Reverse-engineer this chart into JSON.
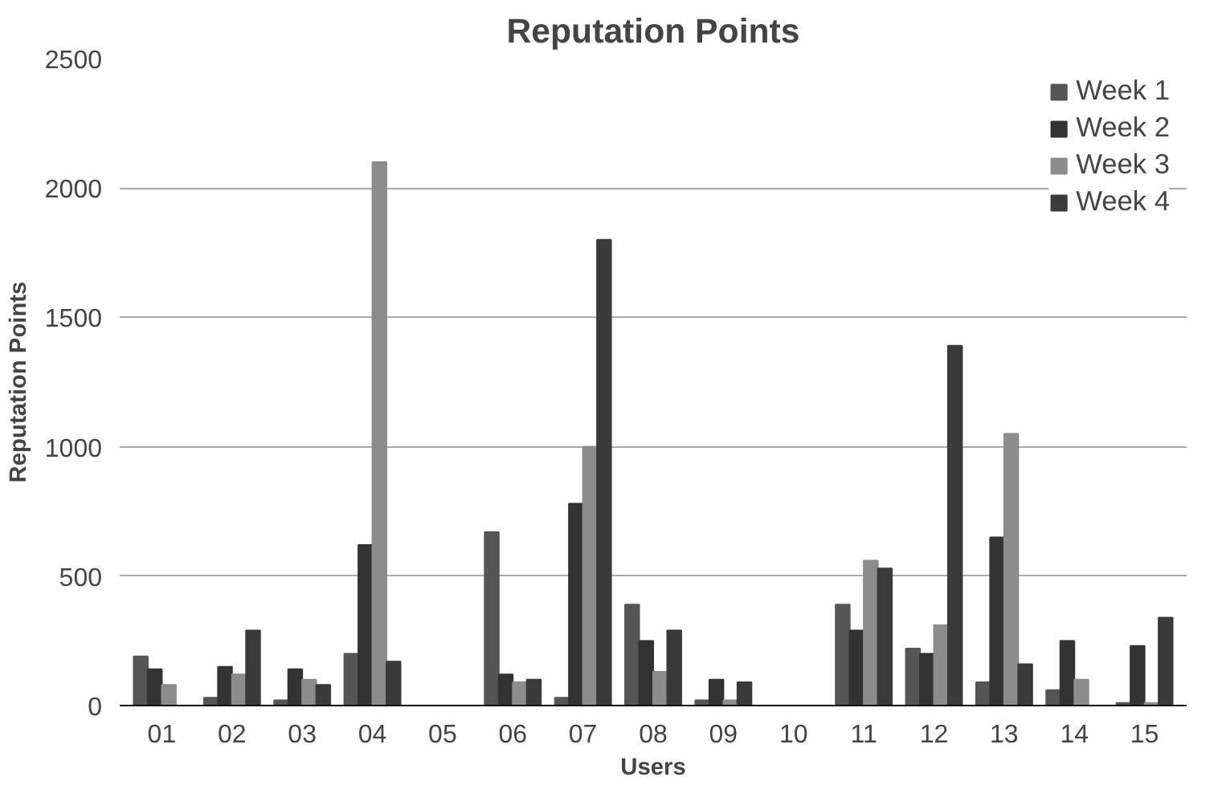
{
  "chart_data": {
    "type": "bar",
    "title": "Reputation Points",
    "xlabel": "Users",
    "ylabel": "Reputation Points",
    "categories": [
      "01",
      "02",
      "03",
      "04",
      "05",
      "06",
      "07",
      "08",
      "09",
      "10",
      "11",
      "12",
      "13",
      "14",
      "15"
    ],
    "series": [
      {
        "name": "Week 1",
        "color": "#555555",
        "values": [
          190,
          30,
          20,
          200,
          0,
          670,
          30,
          390,
          20,
          0,
          390,
          220,
          90,
          60,
          10
        ]
      },
      {
        "name": "Week 2",
        "color": "#333333",
        "values": [
          140,
          150,
          140,
          620,
          0,
          120,
          780,
          250,
          100,
          0,
          290,
          200,
          650,
          250,
          230
        ]
      },
      {
        "name": "Week 3",
        "color": "#8c8c8c",
        "values": [
          80,
          120,
          100,
          2100,
          0,
          90,
          1000,
          130,
          20,
          0,
          560,
          310,
          1050,
          100,
          10
        ]
      },
      {
        "name": "Week 4",
        "color": "#3a3a3a",
        "values": [
          0,
          290,
          80,
          170,
          0,
          100,
          1800,
          290,
          90,
          0,
          530,
          1390,
          160,
          0,
          340
        ]
      }
    ],
    "ylim": [
      0,
      2500
    ],
    "yticks": [
      0,
      500,
      1000,
      1500,
      2000,
      2500
    ],
    "grid": "y",
    "legend": "top right"
  }
}
